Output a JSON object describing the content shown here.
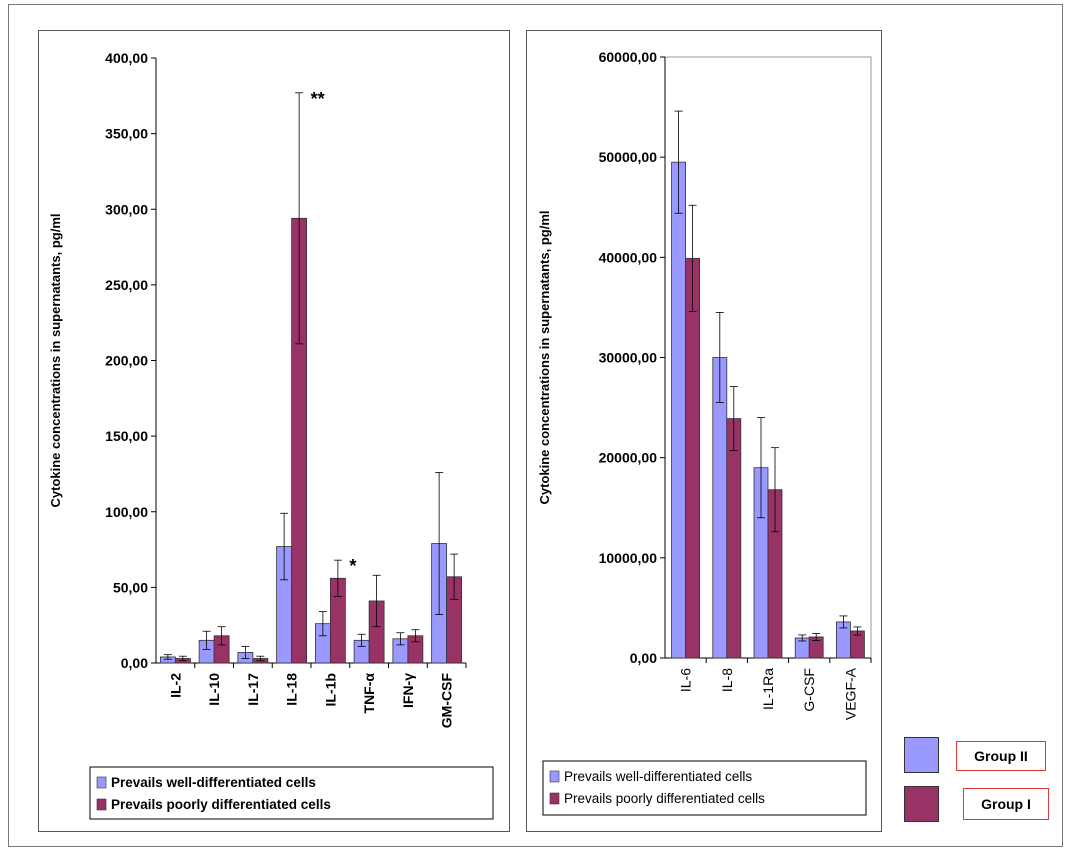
{
  "colors": {
    "well": "#9999ff",
    "poor": "#993366"
  },
  "chart_data": [
    {
      "type": "bar",
      "ylabel": "Cytokine concentrations in  supernatants, pg/ml",
      "ylim": [
        0,
        400
      ],
      "yticks": [
        "0,00",
        "50,00",
        "100,00",
        "150,00",
        "200,00",
        "250,00",
        "300,00",
        "350,00",
        "400,00"
      ],
      "categories": [
        "IL-2",
        "IL-10",
        "IL-17",
        "IL-18",
        "IL-1b",
        "TNF-α",
        "IFN-γ",
        "GM-CSF"
      ],
      "series": [
        {
          "name": "Prevails well-differentiated cells",
          "values": [
            4,
            15,
            7,
            77,
            26,
            15,
            16,
            79
          ],
          "errors": [
            1.5,
            6,
            4,
            22,
            8,
            4,
            4,
            47
          ]
        },
        {
          "name": "Prevails poorly differentiated cells",
          "values": [
            3,
            18,
            3,
            294,
            56,
            41,
            18,
            57
          ],
          "errors": [
            1.5,
            6,
            1.5,
            83,
            12,
            17,
            4,
            15
          ]
        }
      ],
      "annotations": [
        {
          "category": "IL-18",
          "text": "**"
        },
        {
          "category": "IL-1b",
          "text": "*"
        }
      ],
      "legend_position": "bottom"
    },
    {
      "type": "bar",
      "ylabel": "Cytokine concentrations in  supernatants, pg/ml",
      "ylim": [
        0,
        60000
      ],
      "yticks": [
        "0,00",
        "10000,00",
        "20000,00",
        "30000,00",
        "40000,00",
        "50000,00",
        "60000,00"
      ],
      "categories": [
        "IL-6",
        "IL-8",
        "IL-1Ra",
        "G-CSF",
        "VEGF-A"
      ],
      "series": [
        {
          "name": "Prevails well-differentiated cells",
          "values": [
            49500,
            30000,
            19000,
            2000,
            3600
          ],
          "errors": [
            5100,
            4500,
            5000,
            300,
            600
          ]
        },
        {
          "name": "Prevails poorly differentiated cells",
          "values": [
            39900,
            23900,
            16800,
            2100,
            2700
          ],
          "errors": [
            5300,
            3200,
            4200,
            350,
            400
          ]
        }
      ],
      "legend_position": "bottom"
    }
  ],
  "group_legend": [
    {
      "label": "Group II",
      "color": "#9999ff"
    },
    {
      "label": "Group I",
      "color": "#993366"
    }
  ]
}
